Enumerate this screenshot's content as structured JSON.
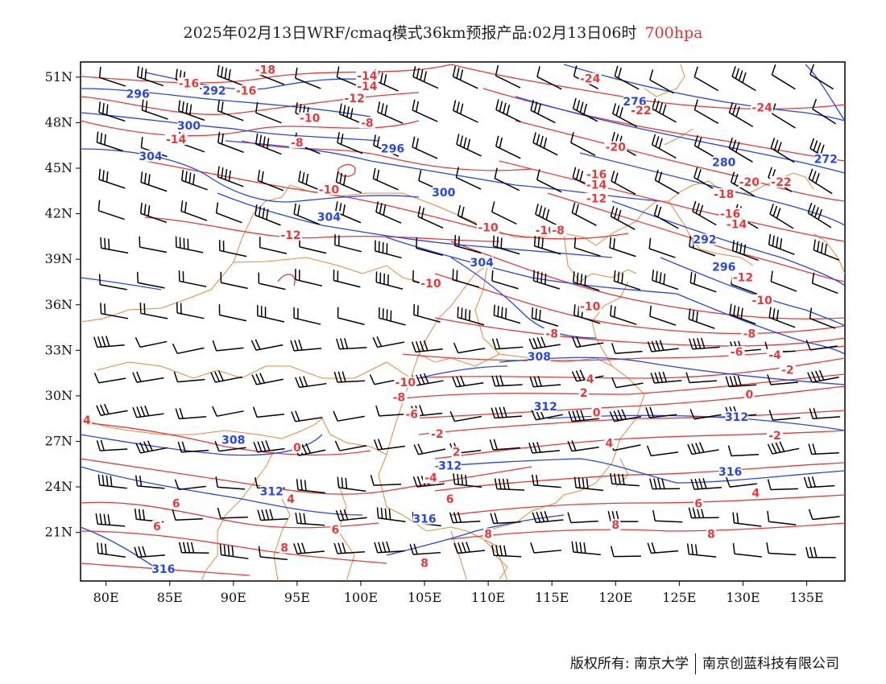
{
  "title": {
    "text": "2025年02月13日WRF/cmaq模式36km预报产品:02月13日06时",
    "level": "700hpa"
  },
  "axes": {
    "lon_labels": [
      "80E",
      "85E",
      "90E",
      "95E",
      "100E",
      "105E",
      "110E",
      "115E",
      "120E",
      "125E",
      "130E",
      "135E"
    ],
    "lat_labels": [
      "51N",
      "48N",
      "45N",
      "42N",
      "39N",
      "36N",
      "33N",
      "30N",
      "27N",
      "24N",
      "21N"
    ],
    "lon_range": [
      78,
      138
    ],
    "lat_range": [
      17.8,
      52
    ]
  },
  "colors": {
    "height": "#2846e8",
    "temperature": "#e63a3a",
    "border": "#e08a3c",
    "wind": "#000000"
  },
  "height_labels": [
    {
      "text": "296",
      "lon": 82.5,
      "lat": 49.8
    },
    {
      "text": "292",
      "lon": 88.5,
      "lat": 50.0
    },
    {
      "text": "300",
      "lon": 86.5,
      "lat": 47.7
    },
    {
      "text": "304",
      "lon": 83.5,
      "lat": 45.7
    },
    {
      "text": "296",
      "lon": 102.5,
      "lat": 46.2
    },
    {
      "text": "300",
      "lon": 106.5,
      "lat": 43.3
    },
    {
      "text": "304",
      "lon": 97.5,
      "lat": 41.7
    },
    {
      "text": "304",
      "lon": 109.5,
      "lat": 38.7
    },
    {
      "text": "308",
      "lon": 114.0,
      "lat": 32.5
    },
    {
      "text": "312",
      "lon": 114.5,
      "lat": 29.2
    },
    {
      "text": "308",
      "lon": 90.0,
      "lat": 27.0
    },
    {
      "text": "312",
      "lon": 107.0,
      "lat": 25.3
    },
    {
      "text": "312",
      "lon": 93.0,
      "lat": 23.6
    },
    {
      "text": "316",
      "lon": 105.0,
      "lat": 21.8
    },
    {
      "text": "316",
      "lon": 84.5,
      "lat": 18.5
    },
    {
      "text": "276",
      "lon": 121.5,
      "lat": 49.3
    },
    {
      "text": "280",
      "lon": 128.5,
      "lat": 45.3
    },
    {
      "text": "272",
      "lon": 136.5,
      "lat": 45.5
    },
    {
      "text": "292",
      "lon": 127.0,
      "lat": 40.2
    },
    {
      "text": "296",
      "lon": 128.5,
      "lat": 38.4
    },
    {
      "text": "312",
      "lon": 129.5,
      "lat": 28.5
    },
    {
      "text": "316",
      "lon": 129.0,
      "lat": 24.9
    }
  ],
  "temp_labels": [
    {
      "text": "-18",
      "lon": 92.5,
      "lat": 51.4
    },
    {
      "text": "-16",
      "lon": 86.5,
      "lat": 50.5
    },
    {
      "text": "-16",
      "lon": 91.0,
      "lat": 50.0
    },
    {
      "text": "-14",
      "lon": 100.5,
      "lat": 51.0
    },
    {
      "text": "-14",
      "lon": 100.5,
      "lat": 50.3
    },
    {
      "text": "-12",
      "lon": 99.5,
      "lat": 49.5
    },
    {
      "text": "-10",
      "lon": 96.0,
      "lat": 48.2
    },
    {
      "text": "-8",
      "lon": 100.5,
      "lat": 47.9
    },
    {
      "text": "-8",
      "lon": 95.0,
      "lat": 46.6
    },
    {
      "text": "-14",
      "lon": 85.5,
      "lat": 46.8
    },
    {
      "text": "-10",
      "lon": 97.5,
      "lat": 43.5
    },
    {
      "text": "-12",
      "lon": 94.5,
      "lat": 40.5
    },
    {
      "text": "-10",
      "lon": 110.0,
      "lat": 41.0
    },
    {
      "text": "-10",
      "lon": 105.5,
      "lat": 37.3
    },
    {
      "text": "-8",
      "lon": 115.0,
      "lat": 34.0
    },
    {
      "text": "-10",
      "lon": 118.0,
      "lat": 35.8
    },
    {
      "text": "-10",
      "lon": 103.5,
      "lat": 30.8
    },
    {
      "text": "-8",
      "lon": 103.0,
      "lat": 29.8
    },
    {
      "text": "-6",
      "lon": 104.0,
      "lat": 28.7
    },
    {
      "text": "-2",
      "lon": 106.0,
      "lat": 27.4
    },
    {
      "text": "0",
      "lon": 95.0,
      "lat": 26.5
    },
    {
      "text": "2",
      "lon": 107.5,
      "lat": 26.2
    },
    {
      "text": "-4",
      "lon": 105.5,
      "lat": 24.5
    },
    {
      "text": "4",
      "lon": 94.5,
      "lat": 23.1
    },
    {
      "text": "6",
      "lon": 107.0,
      "lat": 23.1
    },
    {
      "text": "4",
      "lon": 78.5,
      "lat": 28.3
    },
    {
      "text": "6",
      "lon": 85.5,
      "lat": 22.8
    },
    {
      "text": "6",
      "lon": 84.0,
      "lat": 21.3
    },
    {
      "text": "6",
      "lon": 98.0,
      "lat": 21.1
    },
    {
      "text": "8",
      "lon": 94.0,
      "lat": 19.9
    },
    {
      "text": "8",
      "lon": 105.0,
      "lat": 18.9
    },
    {
      "text": "8",
      "lon": 110.0,
      "lat": 20.8
    },
    {
      "text": "8",
      "lon": 120.0,
      "lat": 21.4
    },
    {
      "text": "8",
      "lon": 127.5,
      "lat": 20.8
    },
    {
      "text": "6",
      "lon": 126.5,
      "lat": 22.8
    },
    {
      "text": "4",
      "lon": 131.0,
      "lat": 23.5
    },
    {
      "text": "4",
      "lon": 119.5,
      "lat": 26.8
    },
    {
      "text": "2",
      "lon": 117.5,
      "lat": 30.1
    },
    {
      "text": "4",
      "lon": 118.0,
      "lat": 31.0
    },
    {
      "text": "0",
      "lon": 118.5,
      "lat": 28.8
    },
    {
      "text": "-2",
      "lon": 132.5,
      "lat": 27.3
    },
    {
      "text": "-2",
      "lon": 133.5,
      "lat": 31.6
    },
    {
      "text": "-4",
      "lon": 132.5,
      "lat": 32.6
    },
    {
      "text": "-6",
      "lon": 129.5,
      "lat": 32.8
    },
    {
      "text": "0",
      "lon": 130.5,
      "lat": 30.0
    },
    {
      "text": "-8",
      "lon": 130.5,
      "lat": 34.0
    },
    {
      "text": "-10",
      "lon": 131.5,
      "lat": 36.2
    },
    {
      "text": "-12",
      "lon": 130.0,
      "lat": 37.7
    },
    {
      "text": "-14",
      "lon": 129.5,
      "lat": 41.2
    },
    {
      "text": "-16",
      "lon": 129.0,
      "lat": 41.9
    },
    {
      "text": "-18",
      "lon": 128.5,
      "lat": 43.2
    },
    {
      "text": "-20",
      "lon": 130.5,
      "lat": 44.0
    },
    {
      "text": "-22",
      "lon": 133.0,
      "lat": 44.0
    },
    {
      "text": "-24",
      "lon": 131.5,
      "lat": 48.9
    },
    {
      "text": "-24",
      "lon": 118.0,
      "lat": 50.8
    },
    {
      "text": "-22",
      "lon": 122.0,
      "lat": 48.7
    },
    {
      "text": "-20",
      "lon": 120.0,
      "lat": 46.3
    },
    {
      "text": "-16",
      "lon": 118.5,
      "lat": 44.5
    },
    {
      "text": "-14",
      "lon": 118.5,
      "lat": 43.8
    },
    {
      "text": "-12",
      "lon": 118.5,
      "lat": 42.9
    },
    {
      "text": "-10",
      "lon": 114.5,
      "lat": 40.8
    },
    {
      "text": "-8",
      "lon": 115.5,
      "lat": 40.8
    }
  ]
}
